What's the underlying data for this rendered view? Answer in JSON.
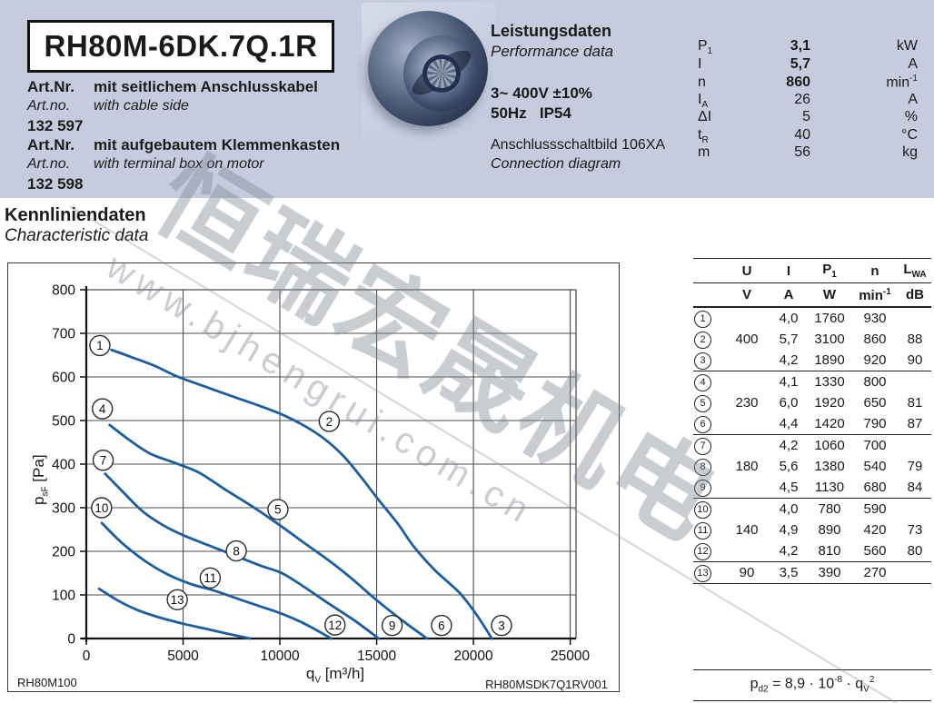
{
  "header": {
    "model": "RH80M-6DK.7Q.1R",
    "art1": {
      "label_de": "Art.Nr.",
      "desc_de": "mit seitlichem Anschlusskabel",
      "label_en": "Art.no.",
      "desc_en": "with cable side",
      "number": "132 597"
    },
    "art2": {
      "label_de": "Art.Nr.",
      "desc_de": "mit aufgebautem Klemmenkasten",
      "label_en": "Art.no.",
      "desc_en": "with terminal box on motor",
      "number": "132 598"
    },
    "performance": {
      "title_de": "Leistungsdaten",
      "title_en": "Performance data",
      "supply_line1": "3~ 400V ±10%",
      "supply_line2": "50Hz   IP54",
      "connection_de": "Anschlussschaltbild 106XA",
      "connection_en": "Connection diagram",
      "params": [
        {
          "sym": "P",
          "sub": "1",
          "value": "3,1",
          "unit": "kW",
          "bold": true
        },
        {
          "sym": "I",
          "sub": "",
          "value": "5,7",
          "unit": "A",
          "bold": true
        },
        {
          "sym": "n",
          "sub": "",
          "value": "860",
          "unit": "min",
          "unit_sup": "-1",
          "bold": true
        },
        {
          "sym": "I",
          "sub": "A",
          "value": "26",
          "unit": "A",
          "bold": false
        },
        {
          "sym": "ΔI",
          "sub": "",
          "value": "5",
          "unit": "%",
          "bold": false
        },
        {
          "sym": "t",
          "sub": "R",
          "value": "40",
          "unit": "°C",
          "bold": false
        },
        {
          "sym": "m",
          "sub": "",
          "value": "56",
          "unit": "kg",
          "bold": false
        }
      ]
    }
  },
  "section": {
    "title_de": "Kennliniendaten",
    "title_en": "Characteristic data"
  },
  "chart_data": {
    "type": "line",
    "xlabel": {
      "main": "q",
      "sub": "V",
      "rest": " [m³/h]"
    },
    "ylabel": {
      "main": "p",
      "sub": "sF",
      "rest": " [Pa]"
    },
    "xlim": [
      0,
      25300
    ],
    "ylim": [
      0,
      800
    ],
    "xticks": [
      0,
      5000,
      10000,
      15000,
      20000,
      25000
    ],
    "yticks": [
      0,
      100,
      200,
      300,
      400,
      500,
      600,
      700,
      800
    ],
    "grid": true,
    "legend_position": "none",
    "corner_left": "RH80M100",
    "corner_right": "RH80MSDK7Q1RV001",
    "line_color": "#1b5d9f",
    "series": [
      {
        "name": "400 V (points 1-2-3)",
        "points": [
          [
            1300,
            662
          ],
          [
            2300,
            646
          ],
          [
            3500,
            626
          ],
          [
            4700,
            601
          ],
          [
            6000,
            580
          ],
          [
            7500,
            556
          ],
          [
            9000,
            533
          ],
          [
            10200,
            512
          ],
          [
            11300,
            487
          ],
          [
            12300,
            458
          ],
          [
            13300,
            418
          ],
          [
            14200,
            370
          ],
          [
            15100,
            318
          ],
          [
            16100,
            263
          ],
          [
            16900,
            212
          ],
          [
            18000,
            157
          ],
          [
            19300,
            104
          ],
          [
            20200,
            52
          ],
          [
            20950,
            0
          ]
        ]
      },
      {
        "name": "230 V (points 4-5-6)",
        "points": [
          [
            1200,
            490
          ],
          [
            2200,
            456
          ],
          [
            3300,
            424
          ],
          [
            4500,
            404
          ],
          [
            5800,
            381
          ],
          [
            7200,
            341
          ],
          [
            8500,
            305
          ],
          [
            9900,
            263
          ],
          [
            11200,
            221
          ],
          [
            12500,
            180
          ],
          [
            13700,
            138
          ],
          [
            15000,
            88
          ],
          [
            16300,
            42
          ],
          [
            17600,
            0
          ]
        ]
      },
      {
        "name": "180 V (points 7-8-9)",
        "points": [
          [
            970,
            378
          ],
          [
            1900,
            336
          ],
          [
            2900,
            292
          ],
          [
            4000,
            259
          ],
          [
            5000,
            237
          ],
          [
            6300,
            214
          ],
          [
            7700,
            190
          ],
          [
            9000,
            167
          ],
          [
            10100,
            150
          ],
          [
            11200,
            120
          ],
          [
            12600,
            78
          ],
          [
            13900,
            40
          ],
          [
            15100,
            0
          ]
        ]
      },
      {
        "name": "140 V (points 10-11-12)",
        "points": [
          [
            800,
            265
          ],
          [
            1800,
            221
          ],
          [
            3000,
            179
          ],
          [
            4200,
            147
          ],
          [
            5400,
            125
          ],
          [
            6600,
            110
          ],
          [
            7900,
            90
          ],
          [
            9100,
            72
          ],
          [
            10200,
            55
          ],
          [
            11400,
            31
          ],
          [
            12650,
            0
          ]
        ]
      },
      {
        "name": "90 V (point 13)",
        "points": [
          [
            660,
            114
          ],
          [
            1600,
            88
          ],
          [
            2600,
            66
          ],
          [
            3800,
            48
          ],
          [
            5000,
            34
          ],
          [
            6200,
            22
          ],
          [
            7300,
            11
          ],
          [
            8450,
            0
          ]
        ]
      }
    ],
    "point_labels": [
      {
        "label": "1",
        "x": 700,
        "y": 672
      },
      {
        "label": "2",
        "x": 12550,
        "y": 498
      },
      {
        "label": "3",
        "x": 21450,
        "y": 30
      },
      {
        "label": "4",
        "x": 830,
        "y": 527
      },
      {
        "label": "5",
        "x": 9900,
        "y": 296
      },
      {
        "label": "6",
        "x": 18350,
        "y": 30
      },
      {
        "label": "7",
        "x": 870,
        "y": 409
      },
      {
        "label": "8",
        "x": 7750,
        "y": 201
      },
      {
        "label": "9",
        "x": 15800,
        "y": 30
      },
      {
        "label": "10",
        "x": 790,
        "y": 300
      },
      {
        "label": "11",
        "x": 6400,
        "y": 139
      },
      {
        "label": "12",
        "x": 12850,
        "y": 31
      },
      {
        "label": "13",
        "x": 4700,
        "y": 89
      }
    ]
  },
  "table": {
    "headers": [
      {
        "t": "U"
      },
      {
        "t": "I"
      },
      {
        "t": "P",
        "sub": "1"
      },
      {
        "t": "n"
      },
      {
        "t": "L",
        "sub": "WA"
      }
    ],
    "units": [
      {
        "t": "V"
      },
      {
        "t": "A"
      },
      {
        "t": "W"
      },
      {
        "t": "min",
        "sup": "-1"
      },
      {
        "t": "dB"
      }
    ],
    "rows": [
      {
        "point": "1",
        "u": "",
        "i": "4,0",
        "p1": "1760",
        "n": "930",
        "lwa": ""
      },
      {
        "point": "2",
        "u": "400",
        "i": "5,7",
        "p1": "3100",
        "n": "860",
        "lwa": "88"
      },
      {
        "point": "3",
        "u": "",
        "i": "4,2",
        "p1": "1890",
        "n": "920",
        "lwa": "90"
      },
      {
        "point": "4",
        "u": "",
        "i": "4,1",
        "p1": "1330",
        "n": "800",
        "lwa": ""
      },
      {
        "point": "5",
        "u": "230",
        "i": "6,0",
        "p1": "1920",
        "n": "650",
        "lwa": "81"
      },
      {
        "point": "6",
        "u": "",
        "i": "4,4",
        "p1": "1420",
        "n": "790",
        "lwa": "87"
      },
      {
        "point": "7",
        "u": "",
        "i": "4,2",
        "p1": "1060",
        "n": "700",
        "lwa": ""
      },
      {
        "point": "8",
        "u": "180",
        "i": "5,6",
        "p1": "1380",
        "n": "540",
        "lwa": "79"
      },
      {
        "point": "9",
        "u": "",
        "i": "4,5",
        "p1": "1130",
        "n": "680",
        "lwa": "84"
      },
      {
        "point": "10",
        "u": "",
        "i": "4,0",
        "p1": "780",
        "n": "590",
        "lwa": ""
      },
      {
        "point": "11",
        "u": "140",
        "i": "4,9",
        "p1": "890",
        "n": "420",
        "lwa": "73"
      },
      {
        "point": "12",
        "u": "",
        "i": "4,2",
        "p1": "810",
        "n": "560",
        "lwa": "80"
      },
      {
        "point": "13",
        "u": "90",
        "i": "3,5",
        "p1": "390",
        "n": "270",
        "lwa": ""
      }
    ],
    "group_starts": [
      3,
      6,
      9,
      12
    ]
  },
  "formula": {
    "lhs": "p",
    "lhs_sub": "d2",
    "body": " = 8,9 · 10",
    "exp": "-8",
    "body2": " · q",
    "q_sub": "V",
    "q_exp": "2"
  },
  "watermark": {
    "cn": "恒瑞宏晟机电",
    "url": "www.bjhengrui.com.cn"
  },
  "colors": {
    "header_band": "#c6ccde",
    "curve_blue": "#1b5d9f",
    "grid": "#4e4e4e",
    "axis": "#111111",
    "text": "#1a1a1a",
    "watermark": "#7e8694"
  }
}
